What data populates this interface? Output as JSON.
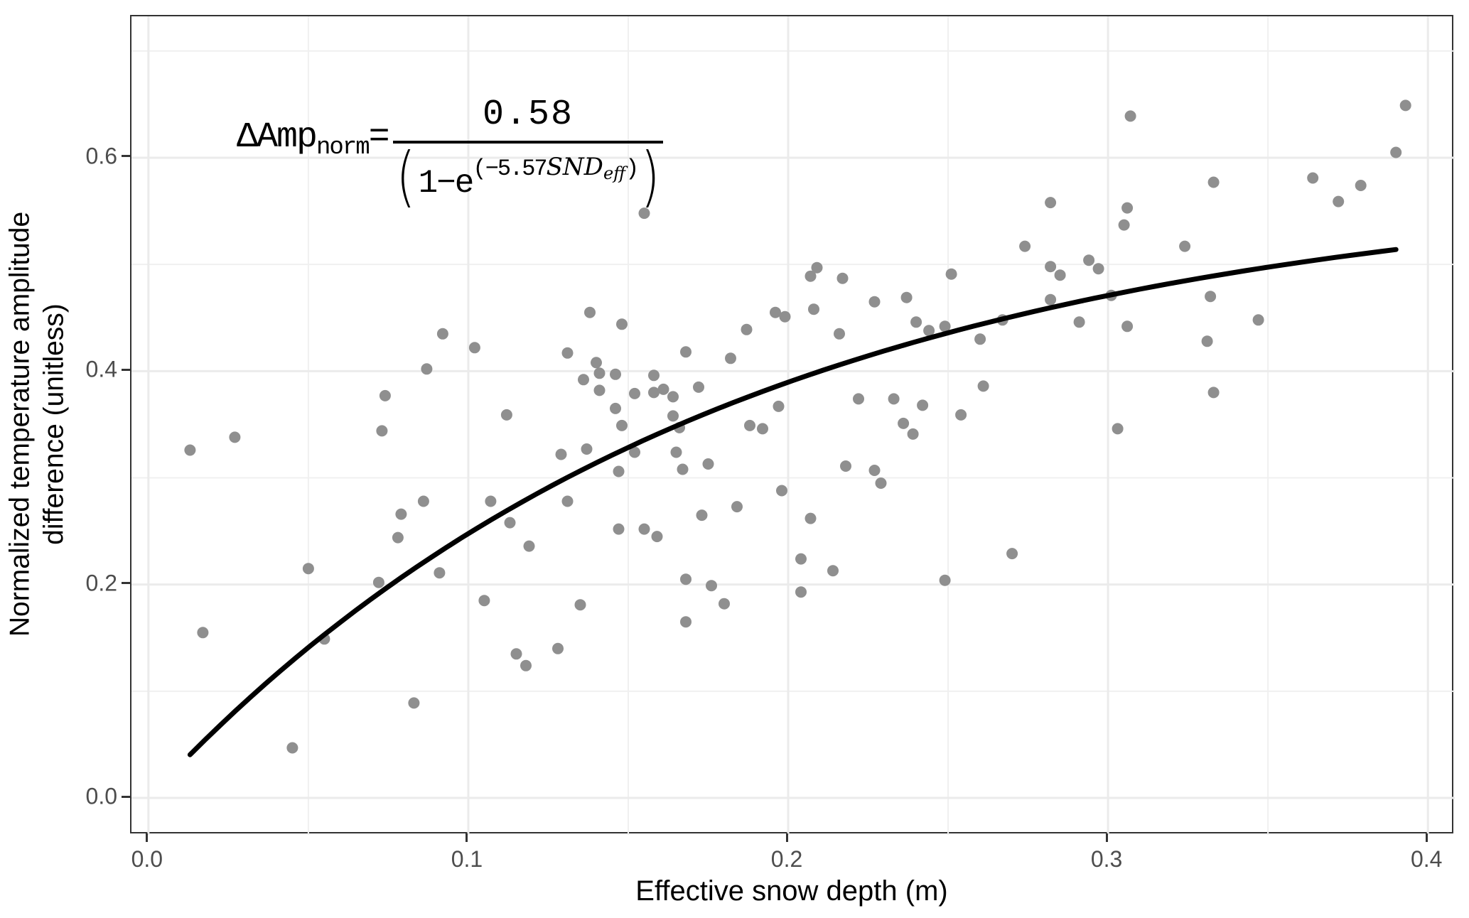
{
  "chart_data": {
    "type": "scatter",
    "title": "",
    "xlabel": "Effective snow depth (m)",
    "ylabel_line1": "Normalized temperature amplitude",
    "ylabel_line2": "difference (unitless)",
    "xlim": [
      -0.0053,
      0.4084
    ],
    "ylim": [
      -0.0346,
      0.7325
    ],
    "grid": true,
    "legend": "none",
    "x_ticks": {
      "values": [
        0.0,
        0.1,
        0.2,
        0.3,
        0.4
      ],
      "labels": [
        "0.0",
        "0.1",
        "0.2",
        "0.3",
        "0.4"
      ]
    },
    "y_ticks": {
      "values": [
        0.0,
        0.2,
        0.4,
        0.6
      ],
      "labels": [
        "0.0",
        "0.2",
        "0.4",
        "0.6"
      ]
    },
    "x_minor_gridlines": [
      0.05,
      0.15,
      0.25,
      0.35
    ],
    "y_minor_gridlines": [
      0.1,
      0.3,
      0.5,
      0.7
    ],
    "points": [
      [
        0.013,
        0.326
      ],
      [
        0.027,
        0.338
      ],
      [
        0.017,
        0.155
      ],
      [
        0.045,
        0.047
      ],
      [
        0.05,
        0.215
      ],
      [
        0.055,
        0.149
      ],
      [
        0.072,
        0.202
      ],
      [
        0.073,
        0.344
      ],
      [
        0.074,
        0.377
      ],
      [
        0.078,
        0.244
      ],
      [
        0.079,
        0.266
      ],
      [
        0.083,
        0.089
      ],
      [
        0.086,
        0.278
      ],
      [
        0.087,
        0.402
      ],
      [
        0.091,
        0.211
      ],
      [
        0.092,
        0.435
      ],
      [
        0.102,
        0.422
      ],
      [
        0.105,
        0.185
      ],
      [
        0.107,
        0.278
      ],
      [
        0.112,
        0.359
      ],
      [
        0.113,
        0.258
      ],
      [
        0.115,
        0.135
      ],
      [
        0.118,
        0.124
      ],
      [
        0.119,
        0.236
      ],
      [
        0.128,
        0.14
      ],
      [
        0.131,
        0.278
      ],
      [
        0.135,
        0.181
      ],
      [
        0.129,
        0.322
      ],
      [
        0.137,
        0.327
      ],
      [
        0.147,
        0.306
      ],
      [
        0.152,
        0.324
      ],
      [
        0.165,
        0.324
      ],
      [
        0.167,
        0.308
      ],
      [
        0.147,
        0.252
      ],
      [
        0.155,
        0.252
      ],
      [
        0.159,
        0.245
      ],
      [
        0.173,
        0.265
      ],
      [
        0.184,
        0.273
      ],
      [
        0.175,
        0.313
      ],
      [
        0.18,
        0.182
      ],
      [
        0.168,
        0.205
      ],
      [
        0.176,
        0.199
      ],
      [
        0.168,
        0.165
      ],
      [
        0.198,
        0.288
      ],
      [
        0.131,
        0.417
      ],
      [
        0.136,
        0.392
      ],
      [
        0.138,
        0.455
      ],
      [
        0.14,
        0.408
      ],
      [
        0.141,
        0.398
      ],
      [
        0.141,
        0.382
      ],
      [
        0.146,
        0.397
      ],
      [
        0.146,
        0.365
      ],
      [
        0.148,
        0.444
      ],
      [
        0.148,
        0.349
      ],
      [
        0.152,
        0.379
      ],
      [
        0.155,
        0.548
      ],
      [
        0.158,
        0.396
      ],
      [
        0.158,
        0.38
      ],
      [
        0.161,
        0.383
      ],
      [
        0.164,
        0.376
      ],
      [
        0.164,
        0.358
      ],
      [
        0.166,
        0.347
      ],
      [
        0.168,
        0.418
      ],
      [
        0.172,
        0.385
      ],
      [
        0.182,
        0.412
      ],
      [
        0.187,
        0.439
      ],
      [
        0.188,
        0.349
      ],
      [
        0.192,
        0.346
      ],
      [
        0.196,
        0.455
      ],
      [
        0.197,
        0.367
      ],
      [
        0.199,
        0.451
      ],
      [
        0.207,
        0.489
      ],
      [
        0.208,
        0.458
      ],
      [
        0.209,
        0.497
      ],
      [
        0.216,
        0.435
      ],
      [
        0.217,
        0.487
      ],
      [
        0.222,
        0.374
      ],
      [
        0.227,
        0.465
      ],
      [
        0.233,
        0.374
      ],
      [
        0.236,
        0.351
      ],
      [
        0.237,
        0.469
      ],
      [
        0.239,
        0.341
      ],
      [
        0.24,
        0.446
      ],
      [
        0.242,
        0.368
      ],
      [
        0.244,
        0.438
      ],
      [
        0.249,
        0.442
      ],
      [
        0.251,
        0.491
      ],
      [
        0.254,
        0.359
      ],
      [
        0.26,
        0.43
      ],
      [
        0.261,
        0.386
      ],
      [
        0.267,
        0.448
      ],
      [
        0.274,
        0.517
      ],
      [
        0.282,
        0.558
      ],
      [
        0.282,
        0.498
      ],
      [
        0.282,
        0.467
      ],
      [
        0.285,
        0.49
      ],
      [
        0.291,
        0.446
      ],
      [
        0.294,
        0.504
      ],
      [
        0.297,
        0.496
      ],
      [
        0.301,
        0.471
      ],
      [
        0.303,
        0.346
      ],
      [
        0.305,
        0.537
      ],
      [
        0.306,
        0.553
      ],
      [
        0.306,
        0.442
      ],
      [
        0.307,
        0.639
      ],
      [
        0.324,
        0.517
      ],
      [
        0.331,
        0.428
      ],
      [
        0.332,
        0.47
      ],
      [
        0.333,
        0.577
      ],
      [
        0.333,
        0.38
      ],
      [
        0.347,
        0.448
      ],
      [
        0.364,
        0.581
      ],
      [
        0.372,
        0.559
      ],
      [
        0.379,
        0.574
      ],
      [
        0.39,
        0.605
      ],
      [
        0.393,
        0.649
      ],
      [
        0.204,
        0.224
      ],
      [
        0.204,
        0.193
      ],
      [
        0.207,
        0.262
      ],
      [
        0.214,
        0.213
      ],
      [
        0.218,
        0.311
      ],
      [
        0.227,
        0.307
      ],
      [
        0.229,
        0.295
      ],
      [
        0.249,
        0.204
      ],
      [
        0.27,
        0.229
      ]
    ],
    "trend_curve": {
      "model": "y = a * (1 - exp(-b * x))",
      "a": 0.58,
      "b": 5.57,
      "x_start": 0.013,
      "x_end": 0.39
    },
    "annotation_equation": {
      "lhs": "ΔAmp",
      "lhs_sub": "norm",
      "equals": "=",
      "numerator": "0.58",
      "den_open": "(",
      "den_base": "1−e",
      "exp_open": "(",
      "exp_coeff": "−5.57",
      "exp_var": "SND",
      "exp_var_sub": "eff",
      "exp_close": ")",
      "den_close": ")"
    }
  },
  "colors": {
    "point": "#8f8f8f",
    "curve": "#000000",
    "grid_major": "#ebebeb",
    "grid_minor": "#f0f0f0",
    "panel_border": "#333333",
    "tick_label": "#4d4d4d",
    "axis_title": "#000000",
    "background": "#ffffff"
  }
}
